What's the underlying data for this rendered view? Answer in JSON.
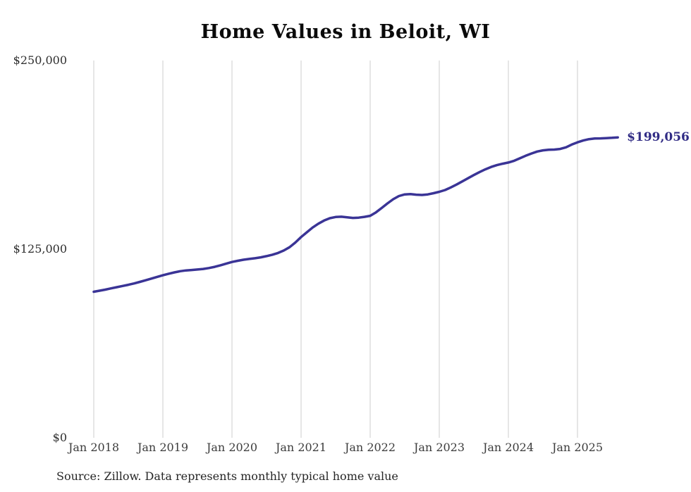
{
  "title": "Home Values in Beloit, WI",
  "source_note": "Source: Zillow. Data represents monthly typical home value",
  "end_label": "$199,056",
  "colors": {
    "line": "#3a3496",
    "end_label": "#312c85",
    "gridline": "#cccccc",
    "title": "#0a0a0a",
    "axis_text": "#3c3c3c"
  },
  "chart_data": {
    "type": "line",
    "title": "Home Values in Beloit, WI",
    "xlabel": "",
    "ylabel": "",
    "ylim": [
      0,
      250000
    ],
    "grid": "vertical-only",
    "legend": "none",
    "x_unit": "month",
    "x": [
      "Jan 2018",
      "Feb 2018",
      "Mar 2018",
      "Apr 2018",
      "May 2018",
      "Jun 2018",
      "Jul 2018",
      "Aug 2018",
      "Sep 2018",
      "Oct 2018",
      "Nov 2018",
      "Dec 2018",
      "Jan 2019",
      "Feb 2019",
      "Mar 2019",
      "Apr 2019",
      "May 2019",
      "Jun 2019",
      "Jul 2019",
      "Aug 2019",
      "Sep 2019",
      "Oct 2019",
      "Nov 2019",
      "Dec 2019",
      "Jan 2020",
      "Feb 2020",
      "Mar 2020",
      "Apr 2020",
      "May 2020",
      "Jun 2020",
      "Jul 2020",
      "Aug 2020",
      "Sep 2020",
      "Oct 2020",
      "Nov 2020",
      "Dec 2020",
      "Jan 2021",
      "Feb 2021",
      "Mar 2021",
      "Apr 2021",
      "May 2021",
      "Jun 2021",
      "Jul 2021",
      "Aug 2021",
      "Sep 2021",
      "Oct 2021",
      "Nov 2021",
      "Dec 2021",
      "Jan 2022",
      "Feb 2022",
      "Mar 2022",
      "Apr 2022",
      "May 2022",
      "Jun 2022",
      "Jul 2022",
      "Aug 2022",
      "Sep 2022",
      "Oct 2022",
      "Nov 2022",
      "Dec 2022",
      "Jan 2023",
      "Feb 2023",
      "Mar 2023",
      "Apr 2023",
      "May 2023",
      "Jun 2023",
      "Jul 2023",
      "Aug 2023",
      "Sep 2023",
      "Oct 2023",
      "Nov 2023",
      "Dec 2023",
      "Jan 2024",
      "Feb 2024",
      "Mar 2024",
      "Apr 2024",
      "May 2024",
      "Jun 2024",
      "Jul 2024",
      "Aug 2024",
      "Sep 2024",
      "Oct 2024",
      "Nov 2024",
      "Dec 2024",
      "Jan 2025",
      "Feb 2025",
      "Mar 2025",
      "Apr 2025",
      "May 2025",
      "Jun 2025",
      "Jul 2025",
      "Aug 2025"
    ],
    "values": [
      96800,
      97500,
      98200,
      99000,
      99800,
      100600,
      101400,
      102300,
      103300,
      104400,
      105500,
      106600,
      107700,
      108700,
      109600,
      110400,
      110900,
      111200,
      111500,
      111900,
      112500,
      113300,
      114300,
      115400,
      116500,
      117300,
      118000,
      118500,
      119000,
      119600,
      120400,
      121300,
      122500,
      124100,
      126300,
      129400,
      133000,
      136200,
      139300,
      141900,
      144000,
      145500,
      146300,
      146500,
      146100,
      145700,
      145900,
      146400,
      147100,
      149400,
      152300,
      155300,
      158100,
      160200,
      161300,
      161500,
      161100,
      160900,
      161300,
      162100,
      163000,
      164200,
      165900,
      167800,
      169900,
      172000,
      174100,
      176100,
      177900,
      179500,
      180700,
      181600,
      182400,
      183600,
      185200,
      186900,
      188400,
      189700,
      190500,
      190900,
      191000,
      191400,
      192500,
      194300,
      195800,
      197000,
      197900,
      198300,
      198400,
      198600,
      198800,
      199056
    ],
    "last_value_label": "$199,056",
    "x_ticks": [
      {
        "label": "Jan 2018",
        "month_index": 0
      },
      {
        "label": "Jan 2019",
        "month_index": 12
      },
      {
        "label": "Jan 2020",
        "month_index": 24
      },
      {
        "label": "Jan 2021",
        "month_index": 36
      },
      {
        "label": "Jan 2022",
        "month_index": 48
      },
      {
        "label": "Jan 2023",
        "month_index": 60
      },
      {
        "label": "Jan 2024",
        "month_index": 72
      },
      {
        "label": "Jan 2025",
        "month_index": 84
      }
    ],
    "y_ticks": [
      {
        "label": "$0",
        "value": 0
      },
      {
        "label": "$125,000",
        "value": 125000
      },
      {
        "label": "$250,000",
        "value": 250000
      }
    ]
  }
}
